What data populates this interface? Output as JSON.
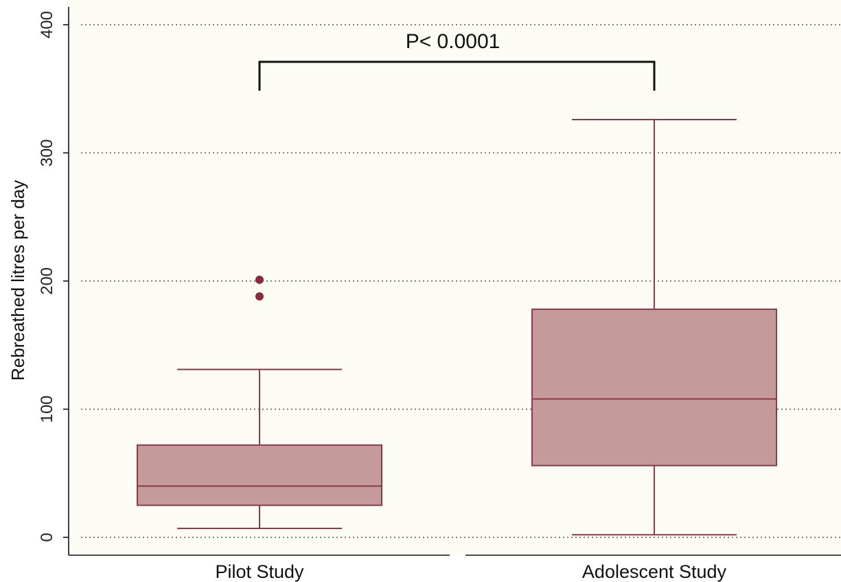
{
  "chart_data": {
    "type": "box",
    "title": "",
    "xlabel": "",
    "ylabel": "Rebreathed litres per day",
    "ylim": [
      0,
      400
    ],
    "yticks": [
      0,
      100,
      200,
      300,
      400
    ],
    "grid": true,
    "categories": [
      "Pilot Study",
      "Adolescent Study"
    ],
    "boxes": [
      {
        "category": "Pilot Study",
        "whisker_low": 7,
        "q1": 25,
        "median": 40,
        "q3": 72,
        "whisker_high": 131,
        "outliers": [
          188,
          201
        ]
      },
      {
        "category": "Adolescent Study",
        "whisker_low": 2,
        "q1": 56,
        "median": 108,
        "q3": 178,
        "whisker_high": 326,
        "outliers": []
      }
    ],
    "annotation": {
      "text": "P< 0.0001",
      "between": [
        "Pilot Study",
        "Adolescent Study"
      ]
    },
    "colors": {
      "box_fill": "#c49a9b",
      "box_stroke": "#8b3a48",
      "outlier": "#8b2a3a",
      "plot_bg": "#fcfbf4",
      "grid": "#555555"
    }
  }
}
